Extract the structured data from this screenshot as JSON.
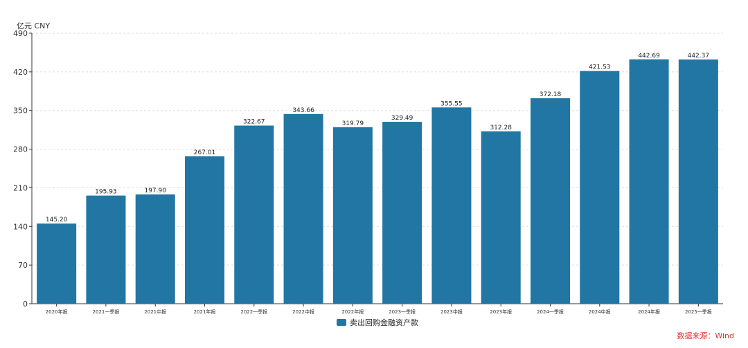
{
  "colors": {
    "bar": "#2276a3",
    "source": "#e0322b",
    "axis": "#333333",
    "grid": "#dddddd"
  },
  "unit_label": "亿元  CNY",
  "source_label": "数据来源：Wind",
  "chart_data": {
    "type": "bar",
    "categories": [
      "2020年报",
      "2021一季报",
      "2021中报",
      "2021年报",
      "2022一季报",
      "2022中报",
      "2022年报",
      "2023一季报",
      "2023中报",
      "2023年报",
      "2024一季报",
      "2024中报",
      "2024年报",
      "2025一季报"
    ],
    "series": [
      {
        "name": "卖出回购金融资产款",
        "values": [
          145.2,
          195.93,
          197.9,
          267.01,
          322.67,
          343.66,
          319.79,
          329.49,
          355.55,
          312.28,
          372.18,
          421.53,
          442.69,
          442.37
        ],
        "labels": [
          "145.20",
          "195.93",
          "197.90",
          "267.01",
          "322.67",
          "343.66",
          "319.79",
          "329.49",
          "355.55",
          "312.28",
          "372.18",
          "421.53",
          "442.69",
          "442.37"
        ]
      }
    ],
    "ylim": [
      0,
      490
    ],
    "yticks": [
      "0",
      "70",
      "140",
      "210",
      "280",
      "350",
      "420",
      "490"
    ],
    "grid": true,
    "legend_position": "bottom"
  }
}
